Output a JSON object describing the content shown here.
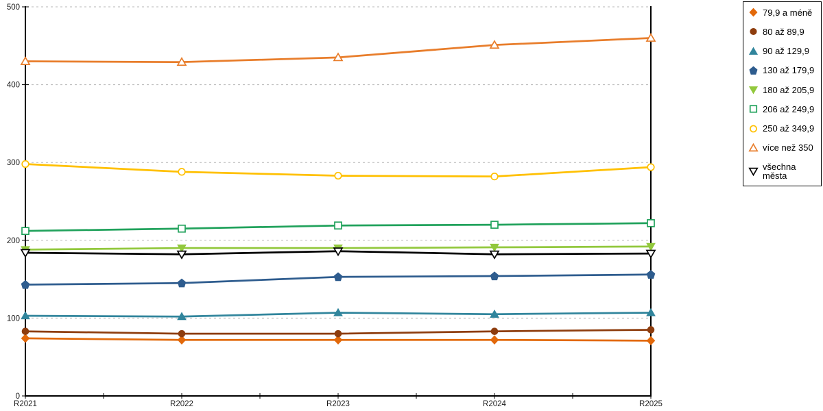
{
  "chart_data": {
    "type": "line",
    "categories": [
      "R2021",
      "R2022",
      "R2023",
      "R2024",
      "R2025"
    ],
    "series": [
      {
        "name": "79,9 a méně",
        "marker": "diamond",
        "filled": true,
        "color": "#E2690B",
        "values": [
          74,
          72,
          72,
          72,
          71
        ]
      },
      {
        "name": "80 až 89,9",
        "marker": "circle",
        "filled": true,
        "color": "#8E3D0E",
        "values": [
          83,
          80,
          80,
          83,
          85
        ]
      },
      {
        "name": "90 až 129,9",
        "marker": "triangle-up",
        "filled": true,
        "color": "#31859C",
        "values": [
          103,
          102,
          107,
          105,
          107
        ]
      },
      {
        "name": "130 až 179,9",
        "marker": "pentagon",
        "filled": true,
        "color": "#2E5C8E",
        "values": [
          143,
          145,
          153,
          154,
          156
        ]
      },
      {
        "name": "180 až 205,9",
        "marker": "triangle-down",
        "filled": true,
        "color": "#92C83D",
        "values": [
          188,
          190,
          190,
          191,
          192
        ]
      },
      {
        "name": "206 až 249,9",
        "marker": "square",
        "filled": false,
        "color": "#21A25C",
        "values": [
          212,
          215,
          219,
          220,
          222
        ]
      },
      {
        "name": "250 až 349,9",
        "marker": "circle",
        "filled": false,
        "color": "#FFC000",
        "values": [
          298,
          288,
          283,
          282,
          294
        ]
      },
      {
        "name": "více než 350",
        "marker": "triangle-up",
        "filled": false,
        "color": "#E87D2B",
        "values": [
          430,
          429,
          435,
          451,
          460
        ]
      },
      {
        "name": "všechna města",
        "marker": "triangle-down",
        "filled": false,
        "color": "#000000",
        "values": [
          184,
          182,
          186,
          182,
          183
        ]
      }
    ],
    "title": "",
    "xlabel": "",
    "ylabel": "",
    "ylim": [
      0,
      500
    ],
    "yticks": [
      0,
      100,
      200,
      300,
      400,
      500
    ],
    "grid": "horizontal-dashed",
    "gridline_color": "#B7B7B7",
    "axis_color": "#000000",
    "legend_position": "top-right"
  }
}
